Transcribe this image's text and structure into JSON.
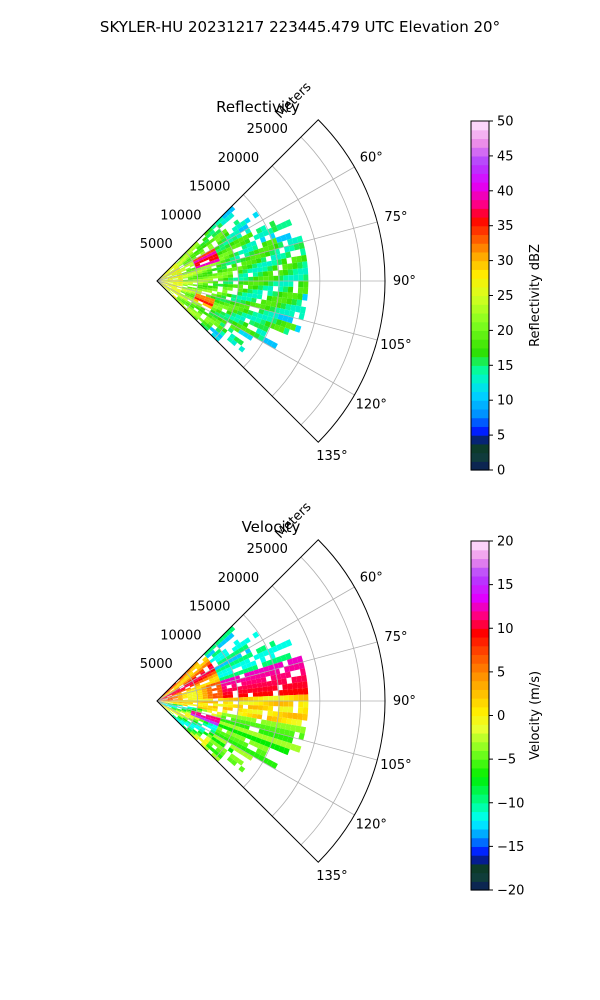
{
  "figure_title": "SKYLER-HU  20231217  223445.479 UTC Elevation 20°",
  "chart_data": [
    {
      "type": "polar-sector",
      "title": "Reflectivity",
      "radial_label": "Meters",
      "radial_ticks": [
        5000,
        10000,
        15000,
        20000,
        25000
      ],
      "radial_tick_labels": [
        "5000",
        "10000",
        "15000",
        "20000",
        "25000"
      ],
      "rmax": 28000,
      "theta_range_deg": [
        45,
        135
      ],
      "angle_ticks_deg": [
        60,
        75,
        90,
        105,
        120,
        135
      ],
      "angle_tick_labels": [
        "60°",
        "75°",
        "90°",
        "105°",
        "120°",
        "135°"
      ],
      "grid": true,
      "colorbar": {
        "label": "Reflectivity dBZ",
        "min": 0,
        "max": 50,
        "ticks": [
          0,
          5,
          10,
          15,
          20,
          25,
          30,
          35,
          40,
          45,
          50
        ],
        "tick_labels": [
          "0",
          "5",
          "10",
          "15",
          "20",
          "25",
          "30",
          "35",
          "40",
          "45",
          "50"
        ],
        "stops": [
          {
            "v": 0,
            "c": "#0a1a5c"
          },
          {
            "v": 2,
            "c": "#0f3d3a"
          },
          {
            "v": 4,
            "c": "#0a3a20"
          },
          {
            "v": 5,
            "c": "#0000ff"
          },
          {
            "v": 8,
            "c": "#0090ff"
          },
          {
            "v": 11,
            "c": "#00d8ff"
          },
          {
            "v": 14,
            "c": "#00ffb0"
          },
          {
            "v": 17,
            "c": "#30e000"
          },
          {
            "v": 21,
            "c": "#80ff20"
          },
          {
            "v": 25,
            "c": "#d8ff20"
          },
          {
            "v": 28,
            "c": "#ffee00"
          },
          {
            "v": 31,
            "c": "#ffa000"
          },
          {
            "v": 34,
            "c": "#ff4000"
          },
          {
            "v": 36,
            "c": "#ff0000"
          },
          {
            "v": 38,
            "c": "#ff0080"
          },
          {
            "v": 41,
            "c": "#e000ff"
          },
          {
            "v": 44,
            "c": "#b040ff"
          },
          {
            "v": 47,
            "c": "#ee90e8"
          },
          {
            "v": 50,
            "c": "#ffe8ff"
          }
        ]
      }
    },
    {
      "type": "polar-sector",
      "title": "Velocity",
      "radial_label": "Meters",
      "radial_ticks": [
        5000,
        10000,
        15000,
        20000,
        25000
      ],
      "radial_tick_labels": [
        "5000",
        "10000",
        "15000",
        "20000",
        "25000"
      ],
      "rmax": 28000,
      "theta_range_deg": [
        45,
        135
      ],
      "angle_ticks_deg": [
        60,
        75,
        90,
        105,
        120,
        135
      ],
      "angle_tick_labels": [
        "60°",
        "75°",
        "90°",
        "105°",
        "120°",
        "135°"
      ],
      "grid": true,
      "colorbar": {
        "label": "Velocity (m/s)",
        "min": -20,
        "max": 20,
        "ticks": [
          -20,
          -15,
          -10,
          -5,
          0,
          5,
          10,
          15,
          20
        ],
        "tick_labels": [
          "−20",
          "−15",
          "−10",
          "−5",
          "0",
          "5",
          "10",
          "15",
          "20"
        ],
        "stops": [
          {
            "v": -20,
            "c": "#0a1a5c"
          },
          {
            "v": -18.5,
            "c": "#0f3d3a"
          },
          {
            "v": -17,
            "c": "#0a3a20"
          },
          {
            "v": -16,
            "c": "#0000ff"
          },
          {
            "v": -14,
            "c": "#0090ff"
          },
          {
            "v": -12,
            "c": "#00ffff"
          },
          {
            "v": -10,
            "c": "#00ff90"
          },
          {
            "v": -7,
            "c": "#00ee00"
          },
          {
            "v": -4,
            "c": "#80ff20"
          },
          {
            "v": -1.5,
            "c": "#e8ff30"
          },
          {
            "v": 0.5,
            "c": "#ffee00"
          },
          {
            "v": 4,
            "c": "#ffa000"
          },
          {
            "v": 7,
            "c": "#ff5000"
          },
          {
            "v": 9.5,
            "c": "#ff0000"
          },
          {
            "v": 11.5,
            "c": "#ff0080"
          },
          {
            "v": 13.5,
            "c": "#e000ff"
          },
          {
            "v": 16,
            "c": "#b040ff"
          },
          {
            "v": 18,
            "c": "#ee90e8"
          },
          {
            "v": 20,
            "c": "#ffe8ff"
          }
        ]
      }
    }
  ]
}
